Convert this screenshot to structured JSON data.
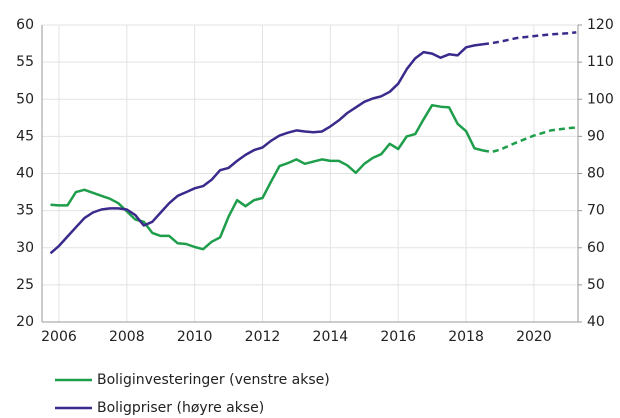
{
  "chart_data": {
    "type": "line",
    "x": [
      2005.75,
      2006,
      2006.25,
      2006.5,
      2006.75,
      2007,
      2007.25,
      2007.5,
      2007.75,
      2008,
      2008.25,
      2008.5,
      2008.75,
      2009,
      2009.25,
      2009.5,
      2009.75,
      2010,
      2010.25,
      2010.5,
      2010.75,
      2011,
      2011.25,
      2011.5,
      2011.75,
      2012,
      2012.25,
      2012.5,
      2012.75,
      2013,
      2013.25,
      2013.5,
      2013.75,
      2014,
      2014.25,
      2014.5,
      2014.75,
      2015,
      2015.25,
      2015.5,
      2015.75,
      2016,
      2016.25,
      2016.5,
      2016.75,
      2017,
      2017.25,
      2017.5,
      2017.75,
      2018,
      2018.25,
      2018.5,
      2018.75,
      2019,
      2019.5,
      2020,
      2020.5,
      2021,
      2021.25
    ],
    "series": [
      {
        "name": "Boliginvesteringer (venstre akse)",
        "color": "#1e9e4a",
        "axis": "y",
        "values": [
          35.8,
          35.7,
          35.7,
          37.5,
          37.8,
          37.4,
          37,
          36.6,
          36,
          34.9,
          33.8,
          33.5,
          32,
          31.6,
          31.6,
          30.6,
          30.5,
          30.1,
          29.8,
          30.8,
          31.4,
          34.2,
          36.4,
          35.6,
          36.4,
          36.7,
          38.9,
          41,
          41.4,
          41.9,
          41.3,
          41.6,
          41.9,
          41.7,
          41.7,
          41.1,
          40.1,
          41.3,
          42.1,
          42.6,
          44,
          43.3,
          45,
          45.3,
          47.3,
          49.2,
          49,
          48.9,
          46.7,
          45.7,
          43.4,
          43.1,
          42.9,
          43.2,
          44.2,
          45.1,
          45.8,
          46.1,
          46.2
        ]
      },
      {
        "name": "Boligpriser (høyre akse)",
        "color": "#3b2a8c",
        "axis": "y2",
        "values": [
          58.5,
          60.5,
          63,
          65.5,
          68,
          69.5,
          70.3,
          70.6,
          70.6,
          70.3,
          68.8,
          66,
          67,
          69.5,
          72,
          74,
          75,
          76,
          76.6,
          78.3,
          80.9,
          81.5,
          83.4,
          85,
          86.3,
          87,
          88.8,
          90.2,
          91,
          91.6,
          91.3,
          91.1,
          91.3,
          92.7,
          94.3,
          96.3,
          97.8,
          99.3,
          100.2,
          100.8,
          102,
          104.2,
          108.1,
          111,
          112.7,
          112.3,
          111.2,
          112.1,
          111.8,
          114,
          114.5,
          114.8,
          115.1,
          115.5,
          116.5,
          117,
          117.5,
          117.8,
          118
        ]
      }
    ],
    "dashed_from_x": 2018.5,
    "xlim": [
      2005.5,
      2021.3
    ],
    "xticks": [
      2006,
      2008,
      2010,
      2012,
      2014,
      2016,
      2018,
      2020
    ],
    "ylim": [
      20,
      60
    ],
    "yticks": [
      20,
      25,
      30,
      35,
      40,
      45,
      50,
      55,
      60
    ],
    "y2lim": [
      40,
      120
    ],
    "y2ticks": [
      40,
      50,
      60,
      70,
      80,
      90,
      100,
      110,
      120
    ],
    "grid": true,
    "legend": "bottom"
  }
}
